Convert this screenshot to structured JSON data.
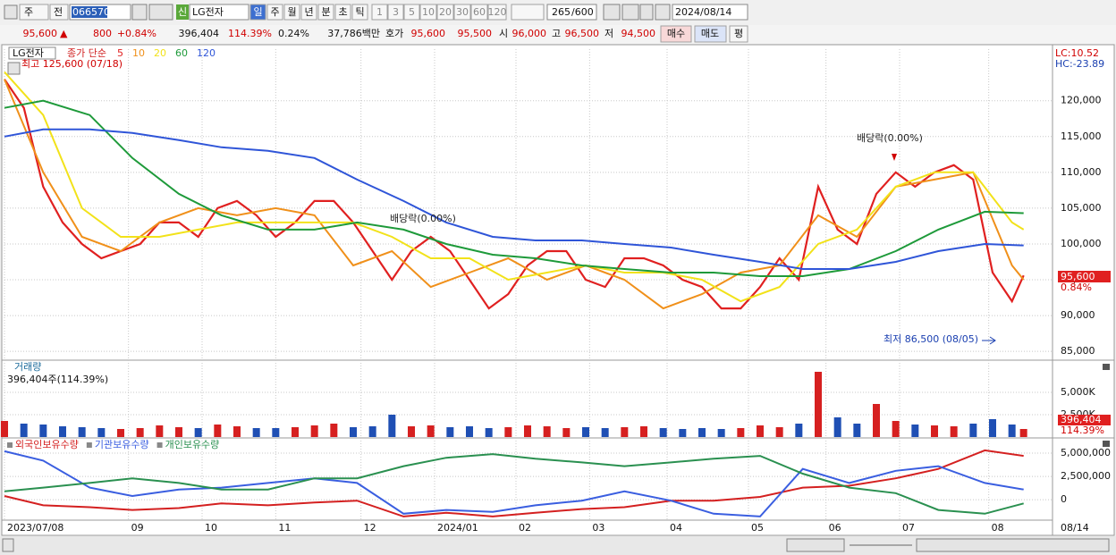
{
  "toolbar": {
    "market": "주",
    "prev": "전",
    "code": "066570",
    "badge": "신",
    "name": "LG전자",
    "periods": [
      "일",
      "주",
      "월",
      "년",
      "분",
      "초",
      "틱"
    ],
    "intervals": [
      "1",
      "3",
      "5",
      "10",
      "20",
      "30",
      "60",
      "120"
    ],
    "count": "265",
    "total": "/600",
    "date": "2024/08/14"
  },
  "quote": {
    "price": "95,600",
    "arrow": "▲",
    "change": "800",
    "rate": "+0.84%",
    "volume": "396,404",
    "volume_rate": "114.39%",
    "turnover": "0.24%",
    "amount": "37,786백만",
    "ask_label": "호가",
    "ask": "95,600",
    "bid": "95,500",
    "open_label": "시",
    "open": "96,000",
    "high_label": "고",
    "high": "96,500",
    "low_label": "저",
    "low": "94,500",
    "buy": "매수",
    "sell": "매도",
    "avg": "평"
  },
  "chart_data": [
    {
      "type": "line",
      "title": "LG전자",
      "legend_prefix": "종가 단순",
      "grid": true,
      "xlim": [
        0,
        270
      ],
      "xticks": [
        {
          "value": 0,
          "label": "2023/07/08"
        },
        {
          "value": 32,
          "label": "09"
        },
        {
          "value": 51,
          "label": "10"
        },
        {
          "value": 70,
          "label": "11"
        },
        {
          "value": 92,
          "label": "12"
        },
        {
          "value": 111,
          "label": "2024/01"
        },
        {
          "value": 132,
          "label": "02"
        },
        {
          "value": 151,
          "label": "03"
        },
        {
          "value": 171,
          "label": "04"
        },
        {
          "value": 192,
          "label": "05"
        },
        {
          "value": 212,
          "label": "06"
        },
        {
          "value": 231,
          "label": "07"
        },
        {
          "value": 254,
          "label": "08"
        }
      ],
      "end_label": "08/14",
      "ylim": [
        83900,
        127200
      ],
      "yticks": [
        {
          "value": 85000,
          "label": "85,000"
        },
        {
          "value": 90000,
          "label": "90,000"
        },
        {
          "value": 95000,
          "label": "95,000"
        },
        {
          "value": 100000,
          "label": "100,000"
        },
        {
          "value": 105000,
          "label": "105,000"
        },
        {
          "value": 110000,
          "label": "110,000"
        },
        {
          "value": 115000,
          "label": "115,000"
        },
        {
          "value": 120000,
          "label": "120,000"
        }
      ],
      "x": [
        0,
        5,
        10,
        15,
        20,
        25,
        30,
        35,
        40,
        45,
        50,
        55,
        60,
        65,
        70,
        75,
        80,
        85,
        90,
        95,
        100,
        105,
        110,
        115,
        120,
        125,
        130,
        135,
        140,
        145,
        150,
        155,
        160,
        165,
        170,
        175,
        180,
        185,
        190,
        195,
        200,
        205,
        210,
        215,
        220,
        225,
        230,
        235,
        240,
        245,
        250,
        255,
        260,
        263
      ],
      "series": [
        {
          "name": "5",
          "color": "#e02020",
          "values": [
            123000,
            119000,
            108000,
            103000,
            100000,
            98000,
            99000,
            100000,
            103000,
            103000,
            101000,
            105000,
            106000,
            104000,
            101000,
            103000,
            106000,
            106000,
            103000,
            99000,
            95000,
            99000,
            101000,
            99000,
            95000,
            91000,
            93000,
            97000,
            99000,
            99000,
            95000,
            94000,
            98000,
            98000,
            97000,
            95000,
            94000,
            91000,
            91000,
            94000,
            98000,
            95000,
            108000,
            102000,
            100000,
            107000,
            110000,
            108000,
            110000,
            111000,
            109000,
            96000,
            92000,
            95600
          ]
        },
        {
          "name": "10",
          "color": "#f0901a",
          "x": [
            0,
            10,
            20,
            30,
            40,
            50,
            60,
            70,
            80,
            90,
            100,
            110,
            120,
            130,
            140,
            150,
            160,
            170,
            180,
            190,
            200,
            210,
            220,
            230,
            240,
            250,
            260,
            263
          ],
          "values": [
            123000,
            110000,
            101000,
            99000,
            103000,
            105000,
            104000,
            105000,
            104000,
            97000,
            99000,
            94000,
            96000,
            98000,
            95000,
            97000,
            95000,
            91000,
            93000,
            96000,
            97000,
            104000,
            101000,
            108000,
            109000,
            110000,
            97000,
            95000
          ]
        },
        {
          "name": "20",
          "color": "#f2e21a",
          "x": [
            0,
            10,
            20,
            30,
            40,
            50,
            60,
            70,
            80,
            90,
            100,
            110,
            120,
            130,
            140,
            150,
            160,
            170,
            180,
            190,
            200,
            210,
            220,
            230,
            240,
            250,
            260,
            263
          ],
          "values": [
            124000,
            118000,
            105000,
            101000,
            101000,
            102000,
            103000,
            103000,
            103000,
            103000,
            101000,
            98000,
            98000,
            95000,
            96000,
            97000,
            96000,
            96000,
            95000,
            92000,
            94000,
            100000,
            102000,
            108000,
            110000,
            110000,
            103000,
            102000
          ]
        },
        {
          "name": "60",
          "color": "#1e9a3a",
          "x": [
            0,
            10,
            22,
            33,
            45,
            56,
            68,
            80,
            91,
            103,
            114,
            126,
            137,
            149,
            160,
            172,
            183,
            195,
            206,
            218,
            230,
            241,
            253,
            263
          ],
          "values": [
            119000,
            120000,
            118000,
            112000,
            107000,
            104000,
            102000,
            102000,
            103000,
            102000,
            100000,
            98500,
            98000,
            97000,
            96500,
            96000,
            96000,
            95500,
            95500,
            96500,
            99000,
            102000,
            104500,
            104300
          ]
        },
        {
          "name": "120",
          "color": "#2f55d8",
          "x": [
            0,
            10,
            22,
            33,
            45,
            56,
            68,
            80,
            91,
            103,
            114,
            126,
            137,
            149,
            160,
            172,
            183,
            195,
            206,
            218,
            230,
            241,
            253,
            263
          ],
          "values": [
            115000,
            116000,
            116000,
            115500,
            114500,
            113500,
            113000,
            112000,
            109000,
            106000,
            103000,
            101000,
            100500,
            100500,
            100000,
            99500,
            98500,
            97500,
            96500,
            96500,
            97500,
            99000,
            100000,
            99800
          ]
        }
      ],
      "annotations": [
        "최고 125,600 (07/18)",
        "배당락(0.00%)",
        "배당락(0.00%)",
        "최저 86,500 (08/05)"
      ],
      "last_price": "95,600",
      "last_rate": "0.84%",
      "lc": "LC:10.52",
      "hc": "HC:-23.89"
    },
    {
      "type": "bar",
      "title": "거래량",
      "subtitle": "396,404주(114.39%)",
      "xlim": [
        0,
        270
      ],
      "x": [
        0,
        5,
        10,
        15,
        20,
        25,
        30,
        35,
        40,
        45,
        50,
        55,
        60,
        65,
        70,
        75,
        80,
        85,
        90,
        95,
        100,
        105,
        110,
        115,
        120,
        125,
        130,
        135,
        140,
        145,
        150,
        155,
        160,
        165,
        170,
        175,
        180,
        185,
        190,
        195,
        200,
        205,
        210,
        215,
        220,
        225,
        230,
        235,
        240,
        245,
        250,
        255,
        260,
        263
      ],
      "values": [
        1800,
        1500,
        1400,
        1200,
        1100,
        1000,
        900,
        1000,
        1300,
        1100,
        1000,
        1400,
        1200,
        1000,
        1000,
        1100,
        1300,
        1500,
        1100,
        1200,
        2500,
        1200,
        1300,
        1100,
        1200,
        1000,
        1100,
        1300,
        1200,
        1000,
        1100,
        1000,
        1100,
        1200,
        1000,
        900,
        1000,
        900,
        1000,
        1300,
        1100,
        1500,
        7300,
        2200,
        1500,
        3700,
        1800,
        1400,
        1300,
        1200,
        1500,
        2000,
        1400,
        900
      ],
      "colors": {
        "up": "#d62020",
        "down": "#1f4fb4"
      },
      "ylim": [
        0,
        8400
      ],
      "yticks": [
        {
          "value": 2500,
          "label": "2,500K"
        },
        {
          "value": 5000,
          "label": "5,000K"
        }
      ],
      "last_value": "396,404",
      "last_rate": "114.39%"
    },
    {
      "type": "line",
      "xlim": [
        0,
        270
      ],
      "x": [
        0,
        10,
        22,
        33,
        45,
        56,
        68,
        80,
        91,
        103,
        114,
        126,
        137,
        149,
        160,
        172,
        183,
        195,
        206,
        218,
        230,
        241,
        253,
        263
      ],
      "ylim": [
        -2000000,
        6440000
      ],
      "yticks": [
        0,
        {
          "value": 2500000,
          "label": "2,500,000"
        },
        {
          "value": 5000000,
          "label": "5,000,000"
        }
      ],
      "series": [
        {
          "name": "외국인보유수량",
          "color": "#d42020",
          "values": [
            400000,
            -600000,
            -800000,
            -1100000,
            -900000,
            -400000,
            -600000,
            -300000,
            -100000,
            -1800000,
            -1400000,
            -1800000,
            -1400000,
            -1000000,
            -800000,
            -100000,
            -100000,
            300000,
            1300000,
            1500000,
            2300000,
            3300000,
            5300000,
            4700000
          ]
        },
        {
          "name": "기관보유수량",
          "color": "#3a5ee0",
          "values": [
            5200000,
            4200000,
            1300000,
            400000,
            1100000,
            1300000,
            1800000,
            2300000,
            1800000,
            -1500000,
            -1100000,
            -1300000,
            -600000,
            -100000,
            900000,
            -100000,
            -1500000,
            -1800000,
            3300000,
            1800000,
            3100000,
            3600000,
            1800000,
            1100000
          ]
        },
        {
          "name": "개인보유수량",
          "color": "#2a9050",
          "values": [
            900000,
            1300000,
            1800000,
            2300000,
            1800000,
            1100000,
            1100000,
            2300000,
            2300000,
            3600000,
            4500000,
            4900000,
            4400000,
            4000000,
            3600000,
            4000000,
            4400000,
            4700000,
            2800000,
            1300000,
            700000,
            -1100000,
            -1500000,
            -400000
          ]
        }
      ]
    }
  ]
}
